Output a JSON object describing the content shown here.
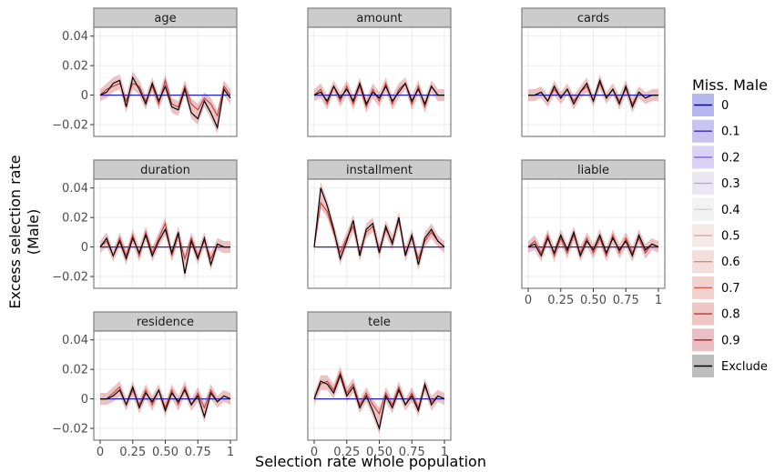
{
  "chart_data": {
    "type": "line",
    "title": "",
    "xlabel": "Selection rate whole population",
    "ylabel": [
      "Excess selection rate",
      "(Male)"
    ],
    "xlim": [
      0,
      1
    ],
    "ylim": [
      -0.028,
      0.046
    ],
    "x_ticks": [
      0,
      0.25,
      0.5,
      0.75,
      1
    ],
    "x_tick_labels": [
      "0",
      "0.25",
      "0.50",
      "0.75",
      "1"
    ],
    "y_ticks": [
      -0.02,
      0,
      0.02,
      0.04
    ],
    "y_tick_labels": [
      "−0.02",
      "0",
      "0.02",
      "0.04"
    ],
    "grid": true,
    "legend_placement": "right",
    "legend": {
      "title": "Miss. Male",
      "entries": [
        {
          "label": "0",
          "color": "#0000cc"
        },
        {
          "label": "0.1",
          "color": "#3d27c9"
        },
        {
          "label": "0.2",
          "color": "#7b5fd9"
        },
        {
          "label": "0.3",
          "color": "#b5a6d6"
        },
        {
          "label": "0.4",
          "color": "#d2d2d2"
        },
        {
          "label": "0.5",
          "color": "#dbb0aa"
        },
        {
          "label": "0.6",
          "color": "#d68a7c"
        },
        {
          "label": "0.7",
          "color": "#cf5f4f"
        },
        {
          "label": "0.8",
          "color": "#c23326"
        },
        {
          "label": "0.9",
          "color": "#b2182b"
        },
        {
          "label": "Exclude",
          "color": "#000000"
        }
      ]
    },
    "panels": [
      {
        "name": "age",
        "x": [
          0,
          0.05,
          0.1,
          0.15,
          0.2,
          0.25,
          0.3,
          0.35,
          0.4,
          0.45,
          0.5,
          0.55,
          0.6,
          0.65,
          0.7,
          0.75,
          0.8,
          0.85,
          0.9,
          0.95,
          1
        ],
        "exclude": [
          0,
          0.002,
          0.008,
          0.01,
          -0.008,
          0.012,
          0.004,
          -0.006,
          0.008,
          -0.004,
          0.006,
          -0.008,
          -0.01,
          0.004,
          -0.012,
          -0.016,
          -0.004,
          -0.012,
          -0.022,
          0.004,
          -0.002
        ],
        "miss_09": [
          0,
          0.004,
          0.006,
          0.008,
          -0.004,
          0.008,
          0.006,
          -0.004,
          0.006,
          -0.006,
          0.01,
          -0.006,
          -0.008,
          0.006,
          -0.006,
          -0.01,
          -0.002,
          -0.006,
          -0.014,
          0.006,
          0
        ],
        "baseline": [
          0,
          0,
          0,
          0,
          0,
          0,
          0,
          0,
          0,
          0,
          0,
          0,
          0,
          0,
          0,
          0,
          0,
          0,
          0,
          0,
          0
        ]
      },
      {
        "name": "amount",
        "x": [
          0,
          0.05,
          0.1,
          0.15,
          0.2,
          0.25,
          0.3,
          0.35,
          0.4,
          0.45,
          0.5,
          0.55,
          0.6,
          0.65,
          0.7,
          0.75,
          0.8,
          0.85,
          0.9,
          0.95,
          1
        ],
        "exclude": [
          0,
          0.002,
          -0.004,
          0.006,
          -0.002,
          0.004,
          -0.004,
          0.008,
          -0.006,
          0.002,
          -0.002,
          0.006,
          -0.004,
          0.002,
          0.008,
          -0.004,
          0.004,
          -0.006,
          0.006,
          0,
          0
        ],
        "miss_09": [
          0,
          0.004,
          -0.006,
          0.006,
          -0.004,
          0.006,
          -0.006,
          0.006,
          -0.008,
          0.004,
          -0.004,
          0.008,
          -0.006,
          0.004,
          0.008,
          -0.006,
          0.006,
          -0.008,
          0.006,
          0,
          0
        ],
        "baseline": [
          0,
          0,
          0,
          0,
          0,
          0,
          0,
          0,
          0,
          0,
          0,
          0,
          0,
          0,
          0,
          0,
          0,
          0,
          0,
          0,
          0
        ]
      },
      {
        "name": "cards",
        "x": [
          0,
          0.05,
          0.1,
          0.15,
          0.2,
          0.25,
          0.3,
          0.35,
          0.4,
          0.45,
          0.5,
          0.55,
          0.6,
          0.65,
          0.7,
          0.75,
          0.8,
          0.85,
          0.9,
          0.95,
          1
        ],
        "exclude": [
          0,
          0,
          0.002,
          -0.004,
          0.006,
          -0.002,
          0.004,
          -0.006,
          0.002,
          0.008,
          -0.004,
          0.01,
          -0.002,
          0.004,
          -0.006,
          0.006,
          -0.008,
          0.002,
          -0.002,
          0,
          0
        ],
        "miss_09": [
          0,
          0,
          0.002,
          -0.004,
          0.004,
          -0.002,
          0.004,
          -0.004,
          0.002,
          0.006,
          -0.004,
          0.008,
          -0.002,
          0.004,
          -0.004,
          0.004,
          -0.006,
          0.002,
          -0.002,
          0,
          0
        ],
        "baseline": [
          0,
          0,
          0,
          0,
          0,
          0,
          0,
          0,
          0,
          0,
          0,
          0,
          0,
          0,
          0,
          0,
          0,
          0,
          0,
          0,
          0
        ]
      },
      {
        "name": "duration",
        "x": [
          0,
          0.05,
          0.1,
          0.15,
          0.2,
          0.25,
          0.3,
          0.35,
          0.4,
          0.45,
          0.5,
          0.55,
          0.6,
          0.65,
          0.7,
          0.75,
          0.8,
          0.85,
          0.9,
          0.95,
          1
        ],
        "exclude": [
          0,
          0.006,
          -0.006,
          0.004,
          -0.008,
          0.006,
          -0.004,
          0.008,
          -0.006,
          0.004,
          0.012,
          -0.004,
          0.01,
          -0.018,
          0.004,
          -0.008,
          0.006,
          -0.012,
          0.002,
          0,
          0
        ],
        "miss_09": [
          0,
          0.004,
          -0.006,
          0.006,
          -0.006,
          0.008,
          -0.006,
          0.01,
          -0.004,
          0.006,
          0.016,
          -0.006,
          0.008,
          -0.008,
          0.006,
          -0.006,
          0.004,
          -0.008,
          0.002,
          0,
          0
        ],
        "baseline": [
          0,
          0,
          0,
          0,
          0,
          0,
          0,
          0,
          0,
          0,
          0,
          0,
          0,
          0,
          0,
          0,
          0,
          0,
          0,
          0,
          0
        ]
      },
      {
        "name": "installment",
        "x": [
          0,
          0.05,
          0.1,
          0.15,
          0.2,
          0.25,
          0.3,
          0.35,
          0.4,
          0.45,
          0.5,
          0.55,
          0.6,
          0.65,
          0.7,
          0.75,
          0.8,
          0.85,
          0.9,
          0.95,
          1
        ],
        "exclude": [
          0,
          0.04,
          0.028,
          0.012,
          -0.008,
          0.004,
          0.018,
          -0.006,
          0.012,
          0.016,
          -0.004,
          0.014,
          0.002,
          0.02,
          -0.006,
          0.008,
          -0.012,
          0.006,
          0.012,
          0.004,
          0
        ],
        "miss_09": [
          0,
          0.03,
          0.024,
          0.01,
          -0.004,
          0.006,
          0.014,
          -0.004,
          0.01,
          0.014,
          -0.002,
          0.012,
          0.004,
          0.018,
          -0.004,
          0.006,
          -0.008,
          0.004,
          0.01,
          0.004,
          0
        ],
        "baseline": [
          0,
          0,
          0,
          0,
          0,
          0,
          0,
          0,
          0,
          0,
          0,
          0,
          0,
          0,
          0,
          0,
          0,
          0,
          0,
          0,
          0
        ]
      },
      {
        "name": "liable",
        "x": [
          0,
          0.05,
          0.1,
          0.15,
          0.2,
          0.25,
          0.3,
          0.35,
          0.4,
          0.45,
          0.5,
          0.55,
          0.6,
          0.65,
          0.7,
          0.75,
          0.8,
          0.85,
          0.9,
          0.95,
          1
        ],
        "exclude": [
          0,
          0.002,
          -0.006,
          0.006,
          -0.004,
          0.008,
          -0.002,
          0.01,
          -0.006,
          0.004,
          -0.002,
          0.008,
          -0.004,
          0.006,
          -0.002,
          0.004,
          -0.006,
          0.008,
          -0.002,
          0.002,
          0
        ],
        "miss_09": [
          0,
          0.004,
          -0.004,
          0.008,
          -0.006,
          0.006,
          -0.004,
          0.008,
          -0.004,
          0.006,
          -0.004,
          0.006,
          -0.006,
          0.008,
          -0.004,
          0.006,
          -0.004,
          0.006,
          -0.004,
          0.002,
          0
        ],
        "baseline": [
          0,
          0,
          0,
          0,
          0,
          0,
          0,
          0,
          0,
          0,
          0,
          0,
          0,
          0,
          0,
          0,
          0,
          0,
          0,
          0,
          0
        ]
      },
      {
        "name": "residence",
        "x": [
          0,
          0.05,
          0.1,
          0.15,
          0.2,
          0.25,
          0.3,
          0.35,
          0.4,
          0.45,
          0.5,
          0.55,
          0.6,
          0.65,
          0.7,
          0.75,
          0.8,
          0.85,
          0.9,
          0.95,
          1
        ],
        "exclude": [
          0,
          0,
          0.002,
          0.006,
          -0.004,
          0.008,
          -0.006,
          0.004,
          -0.002,
          0.006,
          -0.008,
          0.004,
          -0.002,
          0.006,
          -0.004,
          0.002,
          -0.012,
          0.004,
          -0.002,
          0.002,
          0
        ],
        "miss_09": [
          0,
          0,
          0.004,
          0.008,
          -0.004,
          0.006,
          -0.004,
          0.006,
          -0.004,
          0.006,
          -0.006,
          0.006,
          -0.004,
          0.008,
          -0.004,
          0.004,
          -0.006,
          0.006,
          -0.002,
          0.002,
          0
        ],
        "baseline": [
          0,
          0,
          0,
          0,
          0,
          0,
          0,
          0,
          0,
          0,
          0,
          0,
          0,
          0,
          0,
          0,
          0,
          0,
          0,
          0,
          0
        ]
      },
      {
        "name": "tele",
        "x": [
          0,
          0.05,
          0.1,
          0.15,
          0.2,
          0.25,
          0.3,
          0.35,
          0.4,
          0.45,
          0.5,
          0.55,
          0.6,
          0.65,
          0.7,
          0.75,
          0.8,
          0.85,
          0.9,
          0.95,
          1
        ],
        "exclude": [
          0,
          0.012,
          0.01,
          0.004,
          0.016,
          0.002,
          0.008,
          -0.006,
          0.002,
          -0.008,
          -0.02,
          0.002,
          -0.006,
          0.006,
          -0.004,
          0.002,
          -0.008,
          0.01,
          -0.004,
          0.002,
          0
        ],
        "miss_09": [
          0,
          0.01,
          0.012,
          0.006,
          0.018,
          0.004,
          0.01,
          -0.004,
          0.004,
          -0.004,
          -0.01,
          0.004,
          -0.004,
          0.008,
          -0.004,
          0.004,
          -0.006,
          0.008,
          -0.002,
          0.002,
          0
        ],
        "baseline": [
          0,
          0,
          0,
          0,
          0,
          0,
          0,
          0,
          0,
          0,
          0,
          0,
          0,
          0,
          0,
          0,
          0,
          0,
          0,
          0,
          0
        ]
      }
    ]
  }
}
